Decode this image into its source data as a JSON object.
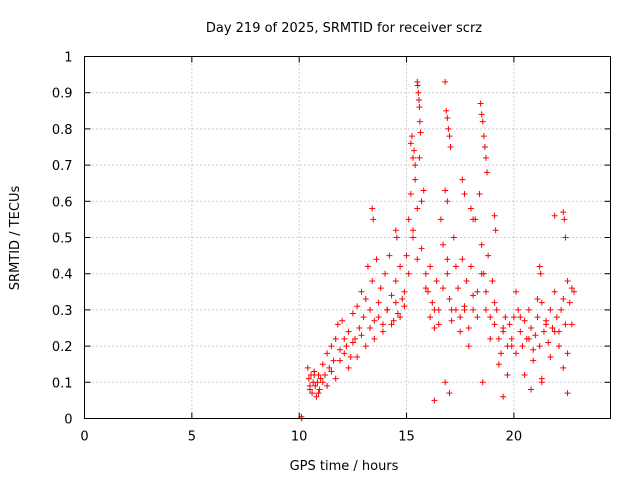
{
  "chart_data": {
    "type": "scatter",
    "title": "Day 219 of 2025, SRMTID for receiver scrz",
    "xlabel": "GPS time / hours",
    "ylabel": "SRMTID / TECUs",
    "xlim": [
      0,
      24.5
    ],
    "ylim": [
      0,
      1
    ],
    "xticks": [
      0,
      5,
      10,
      15,
      20
    ],
    "xtick_labels": [
      "0",
      "5",
      "10",
      "15",
      "20"
    ],
    "yticks": [
      0,
      0.1,
      0.2,
      0.3,
      0.4,
      0.5,
      0.6,
      0.7,
      0.8,
      0.9,
      1
    ],
    "ytick_labels": [
      "0",
      "0.1",
      "0.2",
      "0.3",
      "0.4",
      "0.5",
      "0.6",
      "0.7",
      "0.8",
      "0.9",
      "1"
    ],
    "grid": true,
    "marker": "+",
    "series": [
      {
        "name": "SRMTID",
        "color": "#ff0000",
        "x": [
          10.1,
          10.12,
          10.4,
          10.45,
          10.5,
          10.55,
          10.6,
          10.65,
          10.7,
          10.75,
          10.8,
          10.85,
          10.9,
          10.95,
          11.0,
          11.1,
          11.2,
          11.3,
          11.4,
          11.5,
          11.6,
          11.7,
          11.8,
          11.9,
          12.0,
          12.1,
          12.2,
          12.3,
          12.4,
          12.5,
          12.6,
          12.7,
          12.8,
          12.9,
          13.0,
          13.1,
          13.2,
          13.3,
          13.4,
          13.5,
          13.6,
          13.7,
          13.8,
          13.9,
          14.0,
          14.1,
          14.2,
          14.3,
          14.4,
          14.5,
          14.6,
          14.7,
          14.8,
          14.9,
          15.0,
          15.1,
          15.2,
          15.3,
          15.4,
          15.5,
          15.6,
          15.7,
          15.8,
          15.9,
          16.0,
          16.1,
          16.2,
          16.3,
          16.4,
          16.5,
          16.6,
          16.7,
          16.8,
          16.9,
          17.0,
          17.1,
          17.2,
          17.3,
          17.4,
          17.5,
          17.6,
          17.7,
          17.8,
          17.9,
          18.0,
          18.1,
          18.2,
          18.3,
          18.4,
          18.5,
          18.6,
          18.7,
          18.8,
          18.9,
          19.0,
          19.1,
          19.2,
          19.3,
          19.4,
          19.5,
          19.6,
          19.7,
          19.8,
          19.9,
          20.0,
          20.1,
          20.2,
          20.3,
          20.4,
          20.5,
          20.6,
          20.7,
          20.8,
          20.9,
          21.0,
          21.1,
          21.2,
          21.3,
          21.4,
          21.5,
          21.6,
          21.7,
          21.8,
          21.9,
          22.0,
          22.1,
          22.2,
          22.3,
          22.4,
          22.5,
          22.6,
          22.7,
          22.8,
          10.5,
          10.7,
          10.9,
          11.1,
          11.3,
          11.5,
          11.7,
          11.9,
          12.1,
          12.3,
          12.5,
          12.7,
          12.9,
          13.1,
          13.3,
          13.5,
          13.7,
          13.9,
          14.1,
          14.3,
          14.5,
          14.7,
          14.9,
          15.1,
          15.3,
          15.5,
          15.7,
          15.9,
          16.1,
          16.3,
          16.5,
          16.7,
          16.9,
          17.1,
          17.3,
          17.5,
          17.7,
          17.9,
          18.1,
          18.3,
          18.5,
          18.7,
          18.9,
          19.1,
          19.3,
          19.5,
          19.7,
          19.9,
          20.1,
          20.3,
          20.5,
          20.7,
          20.9,
          21.1,
          21.3,
          21.5,
          21.7,
          21.9,
          22.1,
          22.3,
          22.5,
          22.7,
          15.5,
          15.52,
          15.55,
          15.58,
          15.6,
          15.62,
          15.65,
          15.2,
          15.25,
          15.3,
          15.35,
          15.4,
          16.8,
          16.85,
          16.9,
          16.95,
          17.0,
          17.05,
          18.45,
          18.5,
          18.55,
          18.6,
          18.65,
          18.7,
          18.75,
          16.3,
          16.8,
          17.0,
          18.55,
          19.5,
          20.8,
          21.3,
          22.5,
          13.4,
          13.45,
          14.5,
          14.55,
          21.9,
          22.3,
          22.35,
          22.4,
          21.2,
          21.25,
          19.1,
          19.15,
          16.9,
          18.0,
          18.1,
          17.6,
          17.7
        ],
        "y": [
          0.005,
          0.0,
          0.14,
          0.11,
          0.08,
          0.12,
          0.07,
          0.1,
          0.13,
          0.09,
          0.06,
          0.1,
          0.12,
          0.08,
          0.11,
          0.15,
          0.12,
          0.18,
          0.14,
          0.2,
          0.16,
          0.22,
          0.26,
          0.19,
          0.27,
          0.22,
          0.2,
          0.24,
          0.17,
          0.29,
          0.22,
          0.31,
          0.25,
          0.35,
          0.28,
          0.33,
          0.42,
          0.3,
          0.38,
          0.27,
          0.44,
          0.32,
          0.36,
          0.26,
          0.4,
          0.3,
          0.45,
          0.34,
          0.27,
          0.38,
          0.29,
          0.42,
          0.33,
          0.31,
          0.45,
          0.55,
          0.62,
          0.5,
          0.66,
          0.58,
          0.72,
          0.47,
          0.63,
          0.4,
          0.35,
          0.28,
          0.32,
          0.25,
          0.38,
          0.3,
          0.55,
          0.48,
          0.63,
          0.4,
          0.33,
          0.27,
          0.5,
          0.3,
          0.36,
          0.28,
          0.44,
          0.31,
          0.38,
          0.25,
          0.42,
          0.3,
          0.55,
          0.35,
          0.62,
          0.48,
          0.4,
          0.3,
          0.45,
          0.28,
          0.38,
          0.26,
          0.3,
          0.22,
          0.18,
          0.24,
          0.28,
          0.2,
          0.26,
          0.22,
          0.28,
          0.18,
          0.3,
          0.24,
          0.2,
          0.27,
          0.22,
          0.3,
          0.25,
          0.19,
          0.23,
          0.28,
          0.2,
          0.32,
          0.24,
          0.27,
          0.21,
          0.3,
          0.25,
          0.35,
          0.28,
          0.24,
          0.3,
          0.33,
          0.26,
          0.38,
          0.32,
          0.36,
          0.35,
          0.09,
          0.12,
          0.07,
          0.1,
          0.09,
          0.13,
          0.11,
          0.16,
          0.18,
          0.14,
          0.21,
          0.17,
          0.23,
          0.2,
          0.25,
          0.22,
          0.28,
          0.24,
          0.3,
          0.26,
          0.32,
          0.28,
          0.35,
          0.4,
          0.52,
          0.44,
          0.6,
          0.36,
          0.42,
          0.3,
          0.26,
          0.36,
          0.44,
          0.3,
          0.42,
          0.24,
          0.3,
          0.2,
          0.34,
          0.28,
          0.4,
          0.35,
          0.22,
          0.32,
          0.15,
          0.25,
          0.12,
          0.2,
          0.35,
          0.28,
          0.12,
          0.22,
          0.16,
          0.33,
          0.11,
          0.26,
          0.17,
          0.24,
          0.2,
          0.14,
          0.18,
          0.26,
          0.93,
          0.92,
          0.9,
          0.88,
          0.86,
          0.82,
          0.79,
          0.76,
          0.78,
          0.72,
          0.74,
          0.7,
          0.93,
          0.85,
          0.83,
          0.8,
          0.78,
          0.75,
          0.87,
          0.84,
          0.82,
          0.78,
          0.75,
          0.72,
          0.68,
          0.05,
          0.1,
          0.07,
          0.1,
          0.06,
          0.08,
          0.1,
          0.07,
          0.58,
          0.55,
          0.52,
          0.5,
          0.56,
          0.57,
          0.55,
          0.5,
          0.42,
          0.4,
          0.56,
          0.52,
          0.6,
          0.58,
          0.55,
          0.66,
          0.62
        ]
      }
    ]
  }
}
